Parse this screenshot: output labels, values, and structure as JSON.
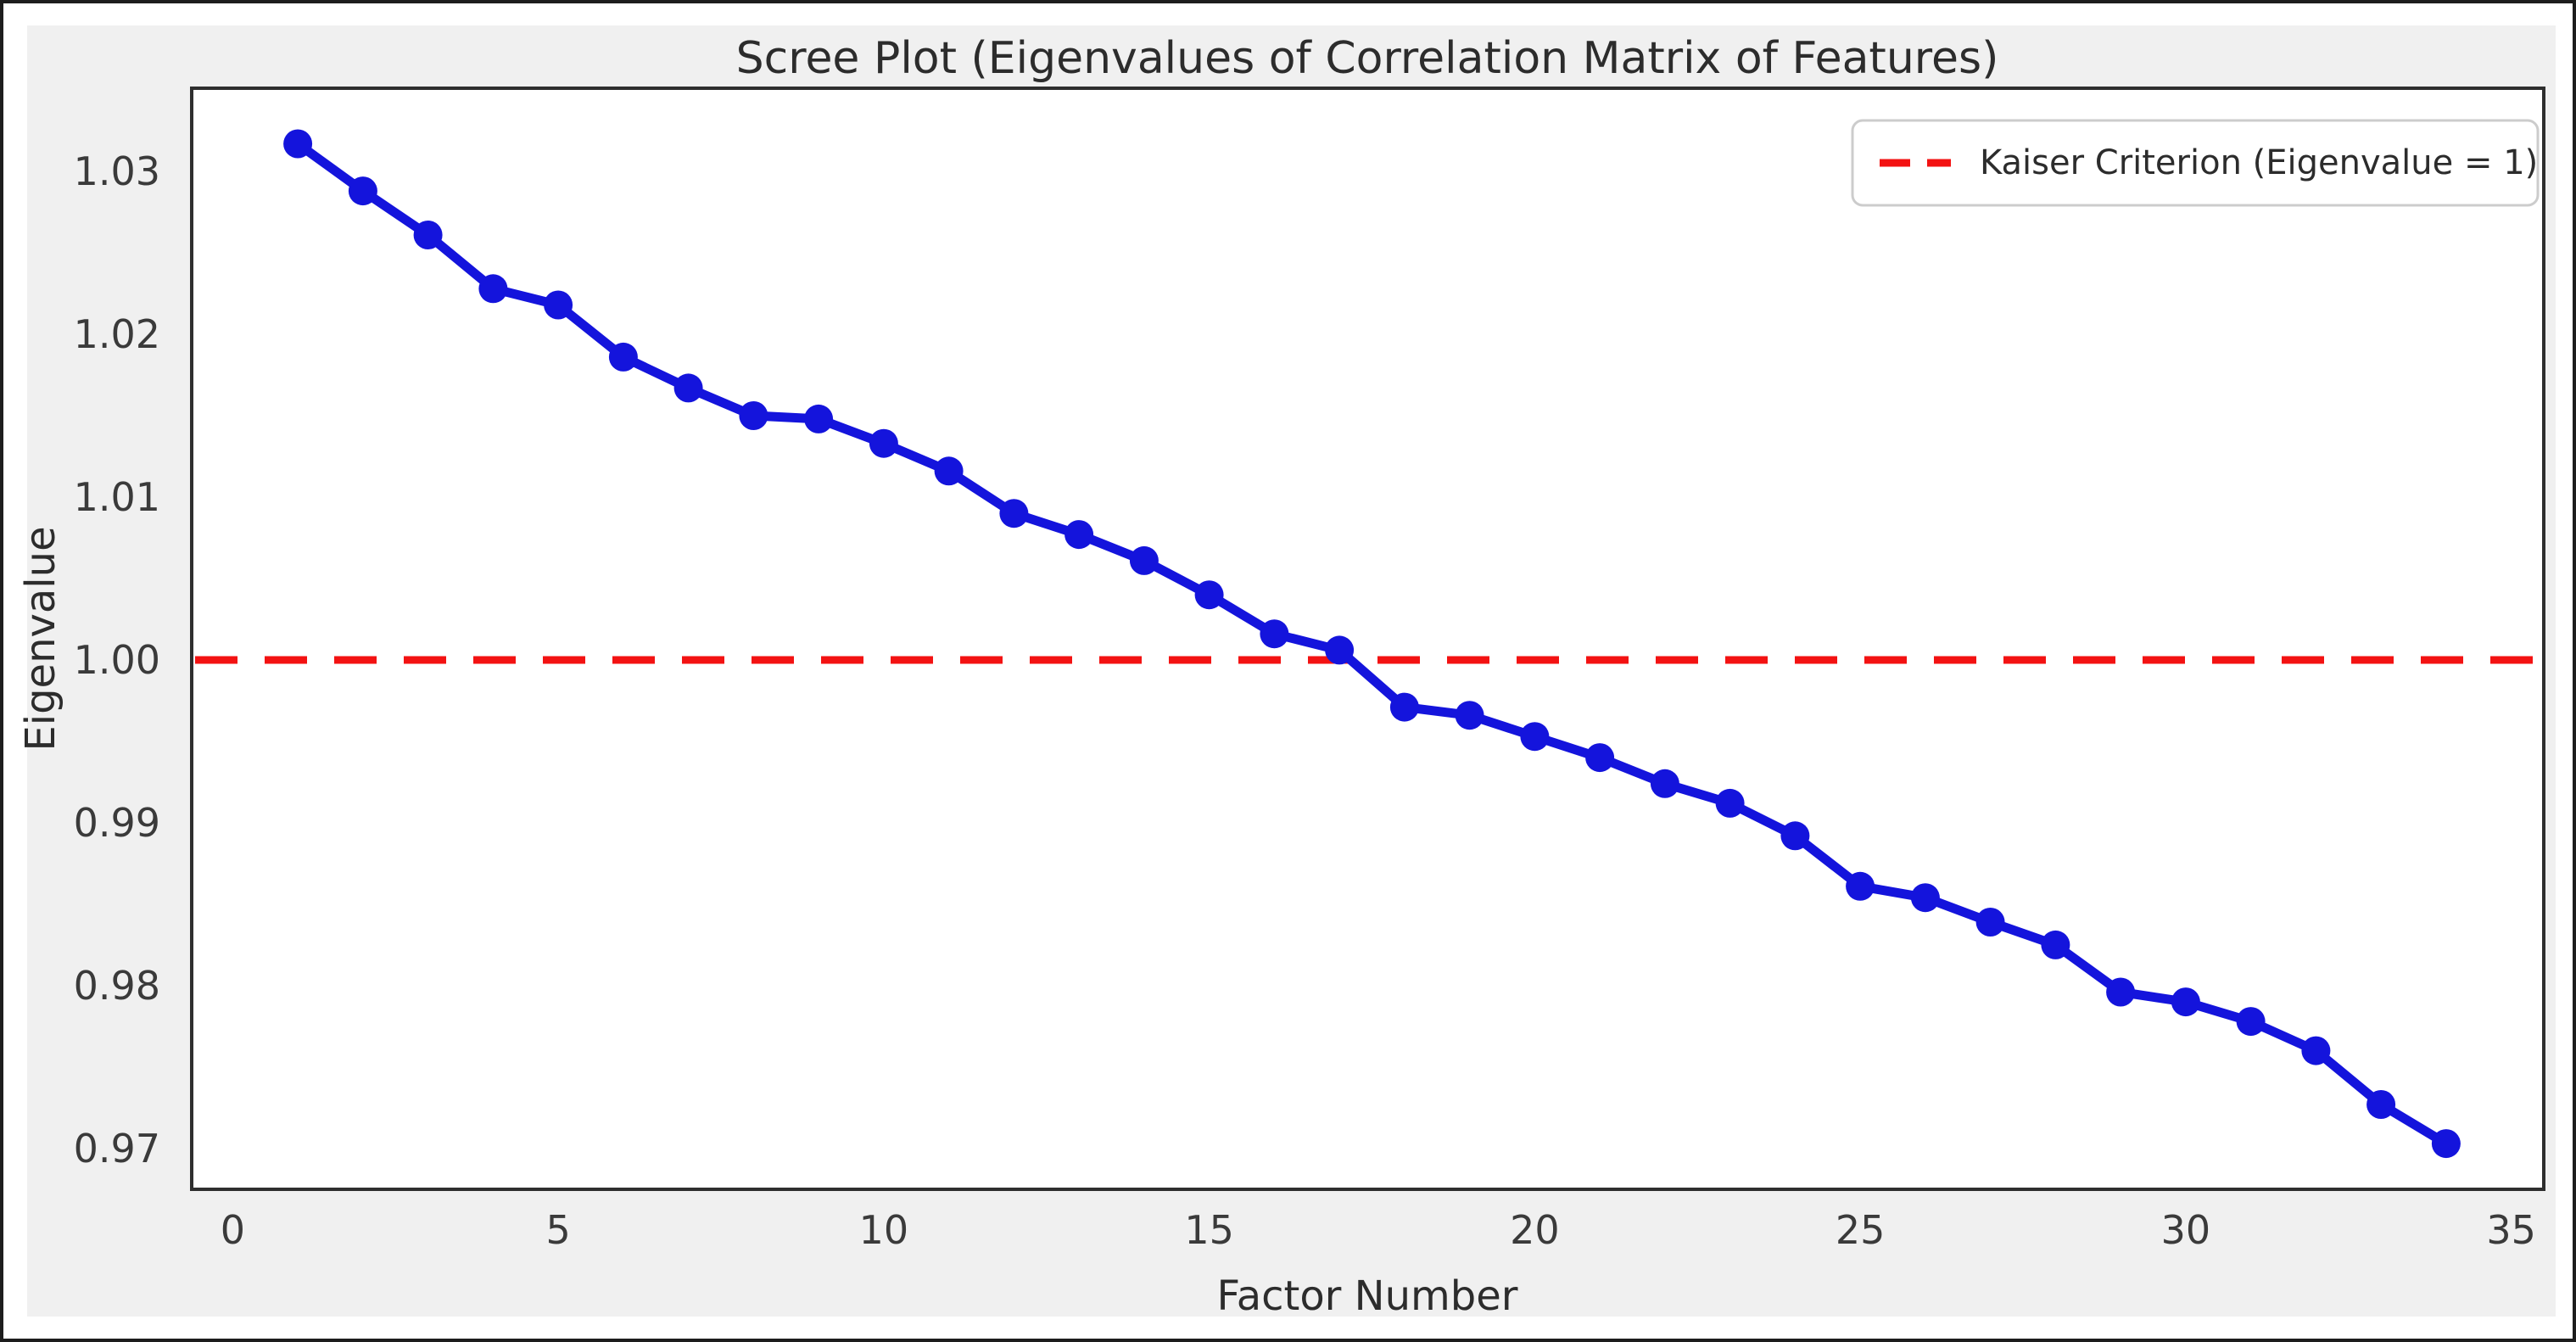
{
  "figure": {
    "background_color": "#f0f0f0",
    "plot_background_color": "#ffffff",
    "spine_color": "#2e2e2e",
    "text_color": "#2c2c2c",
    "tick_label_color": "#3a3a3a"
  },
  "chart_data": {
    "type": "line",
    "title": "Scree Plot (Eigenvalues of Correlation Matrix of Features)",
    "xlabel": "Factor Number",
    "ylabel": "Eigenvalue",
    "series": [
      {
        "name": "Eigenvalues",
        "x": [
          1,
          2,
          3,
          4,
          5,
          6,
          7,
          8,
          9,
          10,
          11,
          12,
          13,
          14,
          15,
          16,
          17,
          18,
          19,
          20,
          21,
          22,
          23,
          24,
          25,
          26,
          27,
          28,
          29,
          30,
          31,
          32,
          33,
          34
        ],
        "values": [
          1.0317,
          1.0288,
          1.0261,
          1.0228,
          1.0218,
          1.0186,
          1.0167,
          1.015,
          1.0148,
          1.0133,
          1.0116,
          1.009,
          1.0077,
          1.0061,
          1.004,
          1.0016,
          1.0006,
          0.9971,
          0.9966,
          0.9953,
          0.994,
          0.9924,
          0.9912,
          0.9892,
          0.9861,
          0.9854,
          0.9839,
          0.9825,
          0.9796,
          0.979,
          0.9778,
          0.976,
          0.9727,
          0.9703
        ],
        "color": "#1414dc",
        "marker": "circle",
        "line_style": "solid"
      }
    ],
    "reference_line": {
      "label": "Kaiser Criterion (Eigenvalue = 1)",
      "value": 1.0,
      "color": "#f31212",
      "line_style": "dashed"
    },
    "x_ticks": [
      0,
      5,
      10,
      15,
      20,
      25,
      30,
      35
    ],
    "y_ticks": [
      1.03,
      1.02,
      1.01,
      1.0,
      0.99,
      0.98,
      0.97
    ],
    "y_tick_decimals": 2,
    "xlim": [
      -0.63,
      35.5
    ],
    "ylim": [
      0.96749,
      1.03511
    ],
    "legend_position": "upper right",
    "grid": false
  }
}
